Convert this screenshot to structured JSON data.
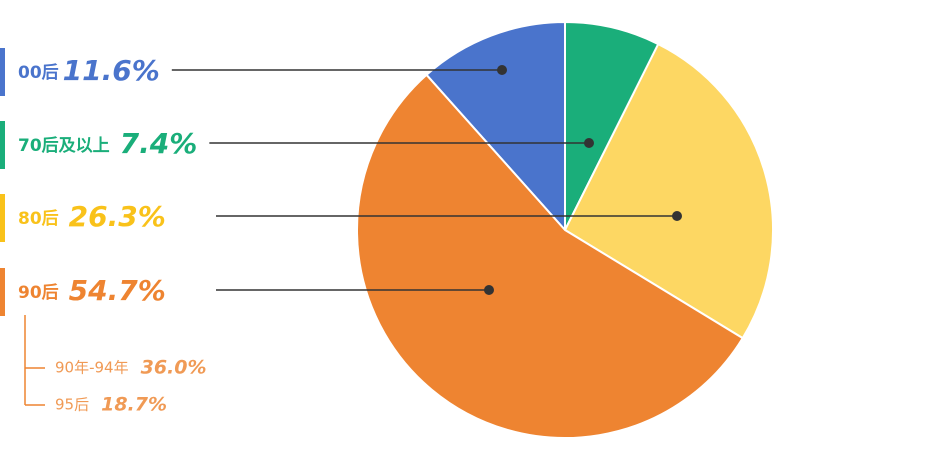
{
  "chart_data": {
    "type": "pie",
    "categories": [
      "00后",
      "70后及以上",
      "80后",
      "90后"
    ],
    "values": [
      11.6,
      7.4,
      26.3,
      54.7
    ],
    "value_labels": [
      "11.6%",
      "7.4%",
      "26.3%",
      "54.7%"
    ],
    "colors": [
      "#4a74cc",
      "#1aae7a",
      "#fdd763",
      "#ee8431"
    ],
    "label_colors": [
      "#4a74cc",
      "#1aae7a",
      "#f9c21a",
      "#ee8431"
    ],
    "sub_breakdown": {
      "parent": 3,
      "items": [
        {
          "name": "90年-94年",
          "value": 36.0,
          "value_label": "36.0%"
        },
        {
          "name": "95后",
          "value": 18.7,
          "value_label": "18.7%"
        }
      ]
    }
  }
}
